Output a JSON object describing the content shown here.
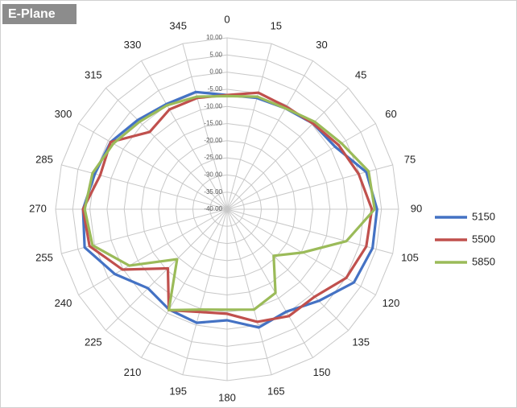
{
  "chart_data": {
    "type": "radar",
    "title": "E-Plane",
    "x": [
      0,
      15,
      30,
      45,
      60,
      75,
      90,
      105,
      120,
      135,
      150,
      165,
      180,
      195,
      210,
      225,
      240,
      255,
      270,
      285,
      300,
      315,
      330,
      345
    ],
    "xlim": [
      0,
      360
    ],
    "ylim": [
      -40,
      10
    ],
    "yticks": [
      {
        "value": 10,
        "label": "10.00"
      },
      {
        "value": 5,
        "label": "5.00"
      },
      {
        "value": 0,
        "label": "0.00"
      },
      {
        "value": -5,
        "label": "-5.00"
      },
      {
        "value": -10,
        "label": "-10.00"
      },
      {
        "value": -15,
        "label": "-15.00"
      },
      {
        "value": -20,
        "label": "-20.00"
      },
      {
        "value": -25,
        "label": "-25.00"
      },
      {
        "value": -30,
        "label": "-30.00"
      },
      {
        "value": -35,
        "label": "-35.00"
      },
      {
        "value": -40,
        "label": "-40.00"
      }
    ],
    "grid": true,
    "legend": "right",
    "series": [
      {
        "name": "5150",
        "color": "#4472c4",
        "values": [
          -6.7,
          -6.4,
          -6.0,
          -4.6,
          -3.6,
          2.0,
          3.7,
          3.9,
          2.7,
          -2.2,
          -5.5,
          -4.3,
          -7.6,
          -5.7,
          -6.2,
          -7.4,
          -2.2,
          3.0,
          2.0,
          -0.1,
          -0.8,
          -3.2,
          -4.6,
          -4.6
        ]
      },
      {
        "name": "5500",
        "color": "#c0504d",
        "values": [
          -6.7,
          -4.8,
          -5.5,
          -4.6,
          -2.5,
          -0.3,
          2.2,
          2.0,
          0.1,
          -3.9,
          -4.0,
          -6.0,
          -9.5,
          -9.0,
          -6.0,
          -15.6,
          -4.8,
          1.5,
          2.0,
          -1.7,
          -0.8,
          -8.1,
          -6.4,
          -6.4
        ]
      },
      {
        "name": "5850",
        "color": "#9bbb59",
        "values": [
          -7.0,
          -6.0,
          -6.0,
          -3.9,
          -1.5,
          2.7,
          3.0,
          -4.0,
          -14.7,
          -20.8,
          -11.8,
          -9.7,
          -10.7,
          -9.7,
          -6.0,
          -19.4,
          -7.1,
          0.6,
          1.5,
          0.6,
          -1.7,
          -3.9,
          -5.0,
          -6.0
        ]
      }
    ]
  }
}
